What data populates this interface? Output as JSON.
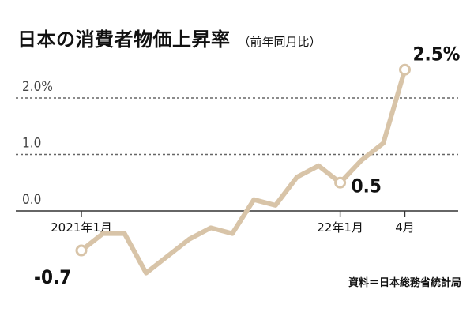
{
  "chart_data": {
    "type": "line",
    "title": "日本の消費者物価上昇率",
    "subtitle": "（前年同月比）",
    "source": "資料＝日本総務省統計局",
    "x_labels": [
      "2021年1月",
      "",
      "",
      "",
      "",
      "",
      "",
      "",
      "",
      "",
      "",
      "",
      "22年1月",
      "",
      "",
      "4月"
    ],
    "values": [
      -0.7,
      -0.4,
      -0.4,
      -1.1,
      -0.8,
      -0.5,
      -0.3,
      -0.4,
      0.2,
      0.1,
      0.6,
      0.8,
      0.5,
      0.9,
      1.2,
      2.5
    ],
    "y_ticks": [
      {
        "value": 0,
        "label": "0.0"
      },
      {
        "value": 1,
        "label": "1.0"
      },
      {
        "value": 2,
        "label": "2.0%"
      }
    ],
    "ylim": [
      -1.2,
      2.7
    ],
    "x_tick_labels": [
      {
        "index": 0,
        "label": "2021年1月"
      },
      {
        "index": 12,
        "label": "22年1月"
      },
      {
        "index": 15,
        "label": "4月"
      }
    ],
    "highlight_points": [
      {
        "index": 0,
        "label": "-0.7"
      },
      {
        "index": 12,
        "label": "0.5"
      },
      {
        "index": 15,
        "label": "2.5%"
      }
    ],
    "colors": {
      "line": "#d8c4a8",
      "marker_fill": "#ffffff",
      "axis": "#333333",
      "grid": "#666666",
      "text": "#111111"
    },
    "grid": true
  }
}
